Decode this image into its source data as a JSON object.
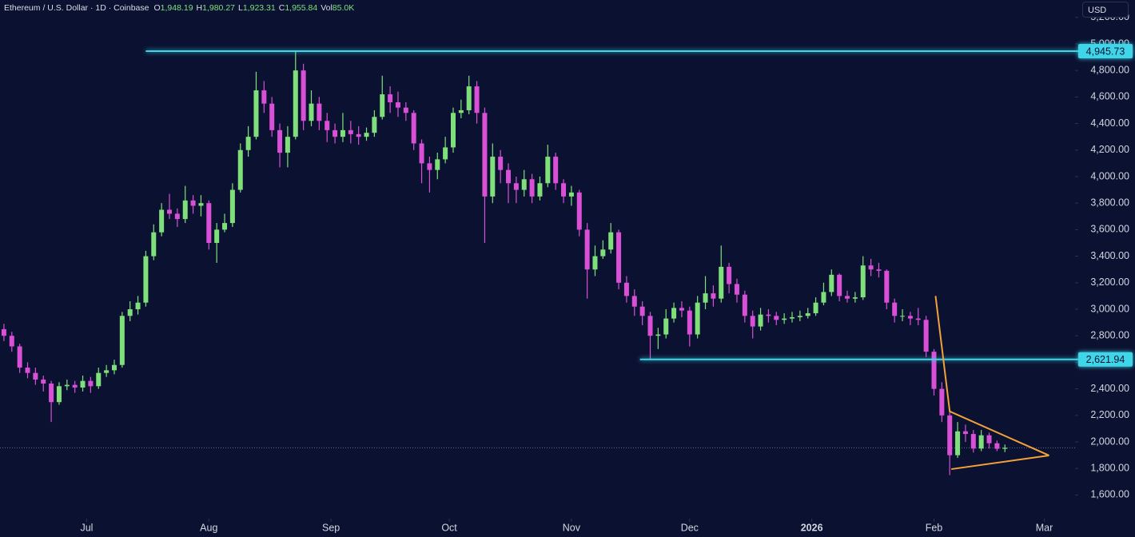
{
  "chart_data": {
    "type": "candlestick",
    "title": "Ethereum / U.S. Dollar · 1D · Coinbase",
    "legend": [
      {
        "label": "O",
        "value": "1,948.19"
      },
      {
        "label": "H",
        "value": "1,980.27"
      },
      {
        "label": "L",
        "value": "1,923.31"
      },
      {
        "label": "C",
        "value": "1,955.84"
      },
      {
        "label": "Vol",
        "value": "85.0K"
      }
    ],
    "currency": "USD",
    "up_color": "#7fe07b",
    "down_color": "#d94fd6",
    "open": [
      2850,
      2800,
      2720,
      2560,
      2520,
      2470,
      2440,
      2300,
      2420,
      2430,
      2410,
      2460,
      2420,
      2520,
      2540,
      2580,
      2950,
      3000,
      3050,
      3400,
      3580,
      3750,
      3720,
      3680,
      3820,
      3780,
      3800,
      3500,
      3600,
      3650,
      3900,
      4200,
      4300,
      4650,
      4550,
      4350,
      4180,
      4300,
      4800,
      4420,
      4550,
      4420,
      4350,
      4300,
      4350,
      4320,
      4300,
      4330,
      4450,
      4620,
      4560,
      4520,
      4480,
      4250,
      4100,
      4050,
      4130,
      4220,
      4480,
      4500,
      4680,
      4480,
      3850,
      4150,
      4050,
      3950,
      3900,
      3980,
      3850,
      3950,
      4150,
      3950,
      3850,
      3880,
      3600,
      3300,
      3400,
      3450,
      3580,
      3200,
      3100,
      3020,
      2950,
      2800,
      2810,
      2930,
      3010,
      2990,
      2810,
      3050,
      3120,
      3080,
      3320,
      3190,
      3110,
      2950,
      2870,
      2960,
      2950,
      2920,
      2930,
      2940,
      2950,
      2970,
      3050,
      3130,
      3260,
      3100,
      3080,
      3090,
      3330,
      3300,
      3290,
      3050,
      2950,
      2950,
      2930,
      2920,
      2680,
      2400,
      2200,
      1900,
      2080,
      2060,
      1950,
      2050,
      1990,
      1948.19
    ],
    "high": [
      2890,
      2830,
      2740,
      2600,
      2560,
      2500,
      2460,
      2450,
      2470,
      2460,
      2500,
      2490,
      2560,
      2580,
      2620,
      2980,
      3060,
      3100,
      3440,
      3640,
      3800,
      3870,
      3760,
      3930,
      3860,
      3860,
      3820,
      3650,
      3720,
      3950,
      4250,
      4380,
      4790,
      4720,
      4600,
      4400,
      4380,
      4945.73,
      4850,
      4650,
      4600,
      4480,
      4400,
      4480,
      4420,
      4380,
      4370,
      4500,
      4760,
      4680,
      4640,
      4560,
      4500,
      4280,
      4150,
      4180,
      4300,
      4520,
      4580,
      4760,
      4720,
      4520,
      4250,
      4200,
      4100,
      4000,
      4050,
      4020,
      4000,
      4240,
      4180,
      3980,
      3930,
      3900,
      3650,
      3480,
      3520,
      3650,
      3600,
      3250,
      3150,
      3060,
      2980,
      2860,
      3000,
      3050,
      3060,
      3020,
      3100,
      3250,
      3180,
      3480,
      3350,
      3230,
      3140,
      2990,
      3010,
      3000,
      2980,
      2970,
      2980,
      2990,
      3010,
      3090,
      3200,
      3300,
      3270,
      3140,
      3130,
      3400,
      3380,
      3350,
      3300,
      3080,
      3000,
      2980,
      3010,
      2950,
      2700,
      2450,
      2230,
      2150,
      2130,
      2090,
      2090,
      2070,
      2010,
      1980.27
    ],
    "low": [
      2760,
      2680,
      2520,
      2480,
      2430,
      2380,
      2150,
      2280,
      2390,
      2370,
      2380,
      2370,
      2400,
      2490,
      2510,
      2560,
      2910,
      2960,
      3020,
      3370,
      3550,
      3680,
      3620,
      3650,
      3720,
      3700,
      3450,
      3350,
      3580,
      3620,
      3880,
      4150,
      4280,
      4480,
      4300,
      4070,
      4070,
      4280,
      4350,
      4380,
      4350,
      4260,
      4250,
      4260,
      4250,
      4240,
      4270,
      4300,
      4430,
      4480,
      4450,
      4420,
      4200,
      3950,
      3880,
      3980,
      4100,
      4180,
      4440,
      4470,
      4400,
      3500,
      3800,
      3950,
      3800,
      3800,
      3850,
      3800,
      3820,
      3920,
      3900,
      3800,
      3780,
      3550,
      3080,
      3250,
      3380,
      3420,
      3150,
      3050,
      2950,
      2880,
      2621.94,
      2700,
      2780,
      2900,
      2940,
      2720,
      2780,
      3000,
      3020,
      3050,
      3120,
      3050,
      2900,
      2780,
      2840,
      2900,
      2880,
      2890,
      2900,
      2910,
      2930,
      2950,
      3030,
      3100,
      3060,
      3050,
      3050,
      3070,
      3250,
      3240,
      3000,
      2900,
      2910,
      2880,
      2880,
      2640,
      2350,
      2150,
      1750,
      1880,
      2000,
      1920,
      1930,
      1950,
      1930,
      1923.31
    ],
    "close": [
      2800,
      2720,
      2560,
      2520,
      2470,
      2440,
      2300,
      2420,
      2430,
      2410,
      2460,
      2420,
      2520,
      2540,
      2580,
      2950,
      3000,
      3050,
      3400,
      3580,
      3750,
      3720,
      3680,
      3820,
      3780,
      3800,
      3500,
      3600,
      3650,
      3900,
      4200,
      4300,
      4650,
      4550,
      4350,
      4180,
      4300,
      4800,
      4420,
      4550,
      4420,
      4350,
      4300,
      4350,
      4320,
      4300,
      4330,
      4450,
      4620,
      4560,
      4520,
      4480,
      4250,
      4100,
      4050,
      4130,
      4220,
      4480,
      4500,
      4680,
      4480,
      3850,
      4150,
      4050,
      3950,
      3900,
      3980,
      3850,
      3950,
      4150,
      3950,
      3850,
      3880,
      3600,
      3300,
      3400,
      3450,
      3580,
      3200,
      3100,
      3020,
      2950,
      2800,
      2810,
      2930,
      3010,
      2990,
      2810,
      3050,
      3120,
      3080,
      3320,
      3190,
      3110,
      2950,
      2870,
      2960,
      2950,
      2920,
      2930,
      2940,
      2950,
      2970,
      3050,
      3130,
      3260,
      3100,
      3080,
      3090,
      3330,
      3300,
      3290,
      3050,
      2950,
      2950,
      2930,
      2920,
      2680,
      2400,
      2200,
      1900,
      2080,
      2060,
      1950,
      2050,
      1990,
      1948.19,
      1955.84
    ],
    "xlim": [
      -0.5,
      135.9
    ],
    "ylim": [
      1446,
      5331
    ],
    "xticks": [
      {
        "value": 10.5,
        "label": "Jul"
      },
      {
        "value": 26,
        "label": "Aug"
      },
      {
        "value": 41.5,
        "label": "Sep"
      },
      {
        "value": 56.5,
        "label": "Oct"
      },
      {
        "value": 72,
        "label": "Nov"
      },
      {
        "value": 87,
        "label": "Dec"
      },
      {
        "value": 102.5,
        "label": "2026"
      },
      {
        "value": 118,
        "label": "Feb"
      },
      {
        "value": 132,
        "label": "Mar"
      }
    ],
    "yticks": [
      {
        "value": 1600,
        "label": "1,600.00"
      },
      {
        "value": 1800,
        "label": "1,800.00"
      },
      {
        "value": 2000,
        "label": "2,000.00"
      },
      {
        "value": 2200,
        "label": "2,200.00"
      },
      {
        "value": 2400,
        "label": "2,400.00"
      },
      {
        "value": 2600,
        "label": "2,600.00"
      },
      {
        "value": 2800,
        "label": "2,800.00"
      },
      {
        "value": 3000,
        "label": "3,000.00"
      },
      {
        "value": 3200,
        "label": "3,200.00"
      },
      {
        "value": 3400,
        "label": "3,400.00"
      },
      {
        "value": 3600,
        "label": "3,600.00"
      },
      {
        "value": 3800,
        "label": "3,800.00"
      },
      {
        "value": 4000,
        "label": "4,000.00"
      },
      {
        "value": 4200,
        "label": "4,200.00"
      },
      {
        "value": 4400,
        "label": "4,400.00"
      },
      {
        "value": 4600,
        "label": "4,600.00"
      },
      {
        "value": 4800,
        "label": "4,800.00"
      },
      {
        "value": 5000,
        "label": "5,000.00"
      },
      {
        "value": 5200,
        "label": "5,200.00"
      }
    ],
    "levels": [
      {
        "value": 4945.73,
        "label": "4,945.73",
        "x_start": 18,
        "color": "#3fd6ea"
      },
      {
        "value": 2621.94,
        "label": "2,621.94",
        "x_start": 80.7,
        "color": "#3fd6ea"
      }
    ],
    "drawings": [
      {
        "color": "#f5a13a",
        "points": [
          [
            118.2,
            3100
          ],
          [
            120,
            2230
          ],
          [
            132.6,
            1898
          ]
        ]
      },
      {
        "color": "#f5a13a",
        "points": [
          [
            120.2,
            1795
          ],
          [
            132.6,
            1898
          ]
        ]
      }
    ],
    "last_price_line": {
      "value": 1955.84,
      "color": "#5d6b88"
    }
  }
}
